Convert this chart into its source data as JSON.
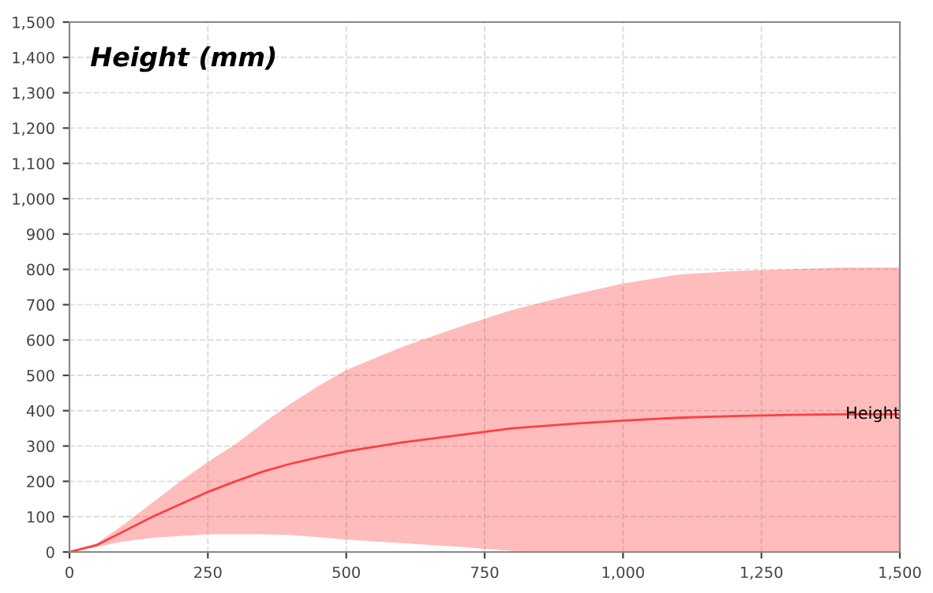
{
  "chart_data": {
    "type": "line",
    "title": "Height (mm)",
    "x": [
      0,
      50,
      100,
      150,
      200,
      250,
      300,
      350,
      400,
      450,
      500,
      600,
      700,
      800,
      900,
      1000,
      1100,
      1200,
      1300,
      1400,
      1500
    ],
    "series": [
      {
        "name": "Height",
        "color": "#ff4040",
        "values": [
          0,
          20,
          60,
          100,
          135,
          170,
          200,
          228,
          250,
          268,
          285,
          310,
          330,
          350,
          362,
          372,
          380,
          385,
          388,
          390,
          390
        ],
        "lower": [
          0,
          15,
          30,
          40,
          45,
          50,
          50,
          50,
          48,
          42,
          35,
          25,
          15,
          3,
          0,
          0,
          0,
          0,
          0,
          0,
          0
        ],
        "upper": [
          0,
          25,
          80,
          140,
          200,
          255,
          305,
          365,
          420,
          470,
          515,
          580,
          635,
          685,
          725,
          760,
          785,
          795,
          800,
          805,
          805
        ]
      }
    ],
    "xlim": [
      0,
      1500
    ],
    "xticks": [
      0,
      {
        "value": 250,
        "label": "250"
      },
      {
        "value": 500,
        "label": "500"
      },
      {
        "value": 750,
        "label": "750"
      },
      {
        "value": 1000,
        "label": "1,000"
      },
      {
        "value": 1250,
        "label": "1,250"
      },
      {
        "value": 1500,
        "label": "1,500"
      }
    ],
    "ylim": [
      0,
      1500
    ],
    "yticks": [
      0,
      100,
      200,
      300,
      400,
      500,
      600,
      700,
      800,
      900,
      {
        "value": 1000,
        "label": "1,000"
      },
      {
        "value": 1100,
        "label": "1,100"
      },
      {
        "value": 1200,
        "label": "1,200"
      },
      {
        "value": 1300,
        "label": "1,300"
      },
      {
        "value": 1400,
        "label": "1,400"
      },
      {
        "value": 1500,
        "label": "1,500"
      }
    ],
    "grid": true
  }
}
